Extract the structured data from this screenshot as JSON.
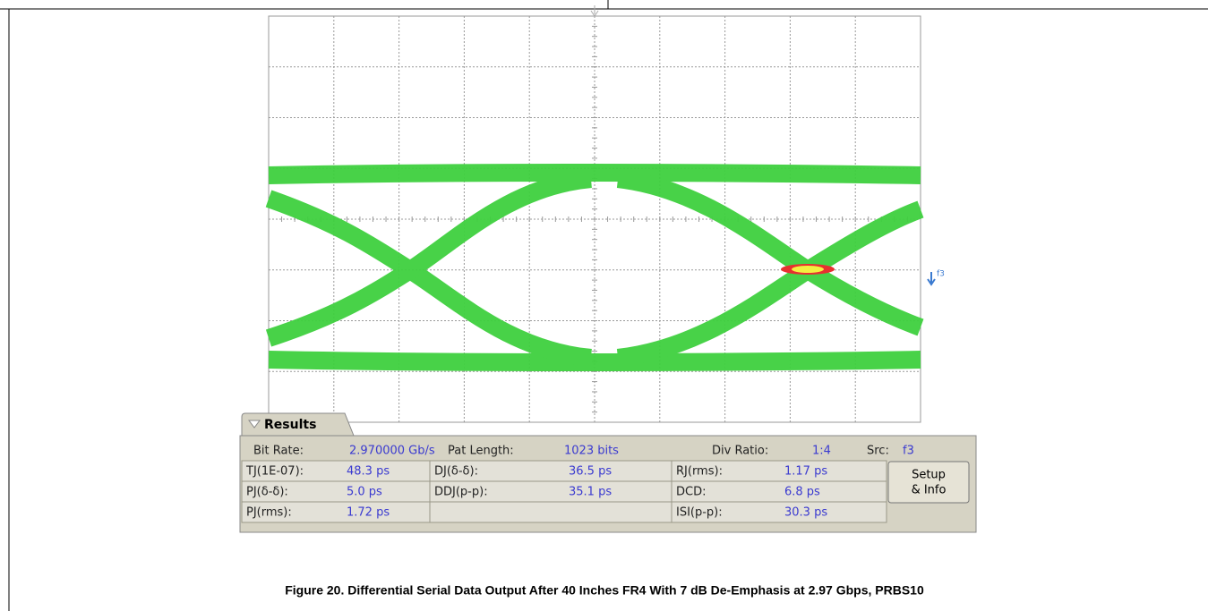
{
  "figure": {
    "caption": "Figure 20. Differential Serial Data Output After 40 Inches FR4 With 7 dB De-Emphasis at 2.97 Gbps, PRBS10",
    "channel_marker": "f3"
  },
  "results": {
    "tab": "Results",
    "summary": [
      {
        "label": "Bit Rate:",
        "value": "2.970000 Gb/s"
      },
      {
        "label": "Pat Length:",
        "value": "1023 bits"
      },
      {
        "label": "Div Ratio:",
        "value": "1:4"
      },
      {
        "label": "Src:",
        "value": "f3"
      }
    ],
    "columns": [
      [
        {
          "label": "TJ(1E-07):",
          "value": "48.3 ps"
        },
        {
          "label": "PJ(δ-δ):",
          "value": "5.0 ps"
        },
        {
          "label": "PJ(rms):",
          "value": "1.72 ps"
        }
      ],
      [
        {
          "label": "DJ(δ-δ):",
          "value": "36.5 ps"
        },
        {
          "label": "DDJ(p-p):",
          "value": "35.1 ps"
        }
      ],
      [
        {
          "label": "RJ(rms):",
          "value": "1.17 ps"
        },
        {
          "label": "DCD:",
          "value": "6.8 ps"
        },
        {
          "label": "ISI(p-p):",
          "value": "30.3 ps"
        }
      ]
    ],
    "button": [
      "Setup",
      "& Info"
    ]
  }
}
